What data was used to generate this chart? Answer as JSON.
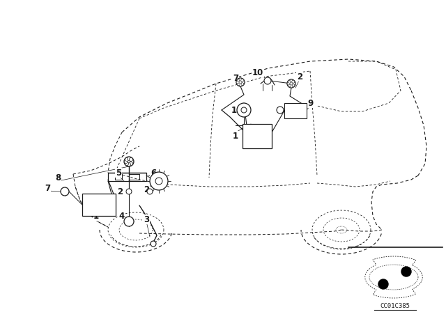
{
  "background_color": "#ffffff",
  "line_color": "#1a1a1a",
  "figure_width": 6.4,
  "figure_height": 4.48,
  "dpi": 100,
  "code_text": "CC01C385"
}
